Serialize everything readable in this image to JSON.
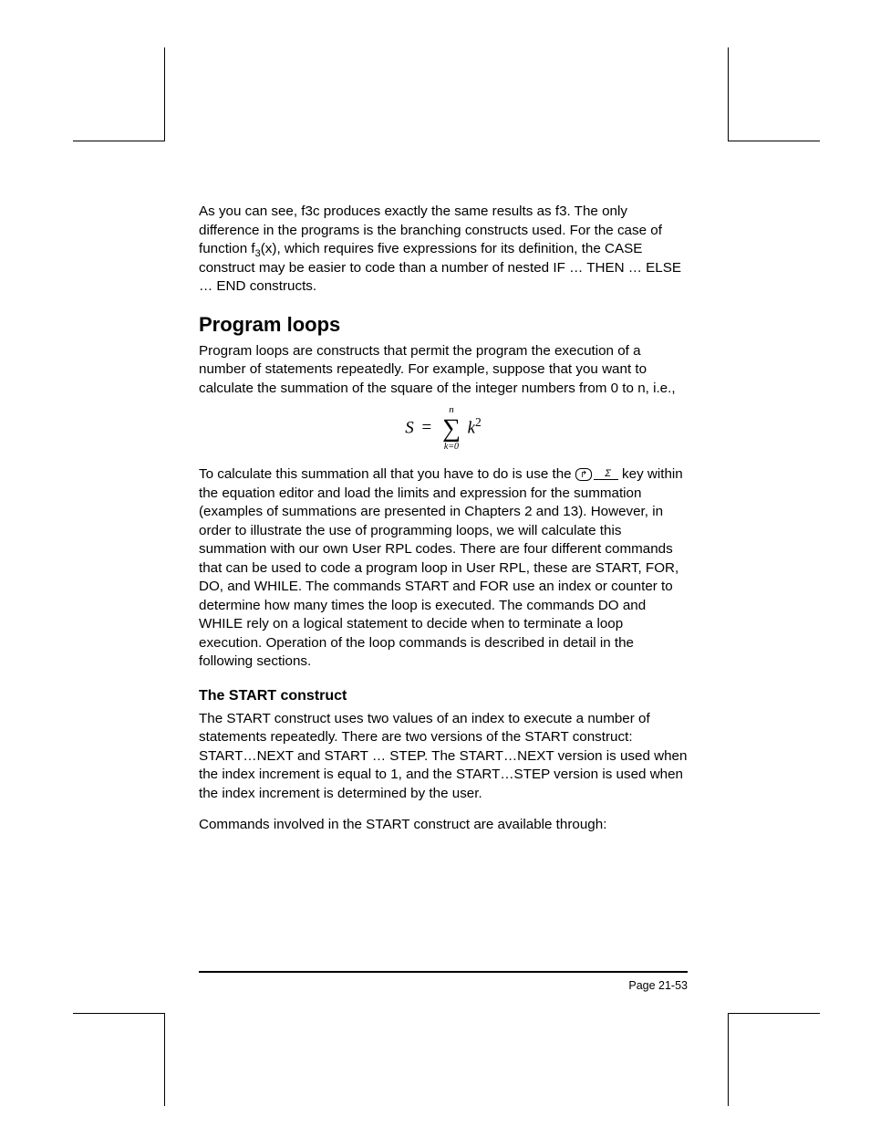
{
  "para1": "As you can see, f3c produces exactly the same results as f3.  The only difference in the programs is the branching constructs used.  For the case of function f",
  "para1_sub": "3",
  "para1_tail": "(x), which requires five expressions for its definition, the CASE construct may be easier to code than a number of nested IF … THEN … ELSE … END constructs.",
  "heading1": "Program loops",
  "para2": "Program loops are constructs that permit the program the execution of a number of statements repeatedly.  For example, suppose that you want to calculate the summation of the square of the integer numbers from 0 to n, i.e.,",
  "eq": {
    "lhs": "S",
    "eq": "=",
    "sum_top": "n",
    "sum_bot": "k=0",
    "var": "k",
    "pow": "2"
  },
  "para3a": "To calculate this summation all that you have to do is use the ",
  "para3b": " key within the equation editor and load the limits and expression for the summation (examples of summations are presented in Chapters 2 and 13). However, in order to illustrate the use of programming loops, we will calculate this summation with our own User RPL codes.  There are four different commands that can be used to code a program loop in User RPL, these are START, FOR, DO, and WHILE.  The commands START and FOR use an index or counter to determine how many times the loop is executed.  The commands DO and WHILE rely on a logical statement to decide when to terminate a loop execution.  Operation of the loop commands is described in detail in the following sections.",
  "heading2": "The START construct",
  "para4": "The START construct uses two values of an index to execute a number of statements repeatedly.  There are two versions of the START construct: START…NEXT and START … STEP. The START…NEXT version is used when the index increment is equal to 1, and the START…STEP version is used when the index increment is determined by the user.",
  "para5": "Commands involved in the START construct are available through:",
  "key": {
    "shift_glyph": "↱",
    "sigma": "Σ"
  },
  "footer": "Page 21-53"
}
